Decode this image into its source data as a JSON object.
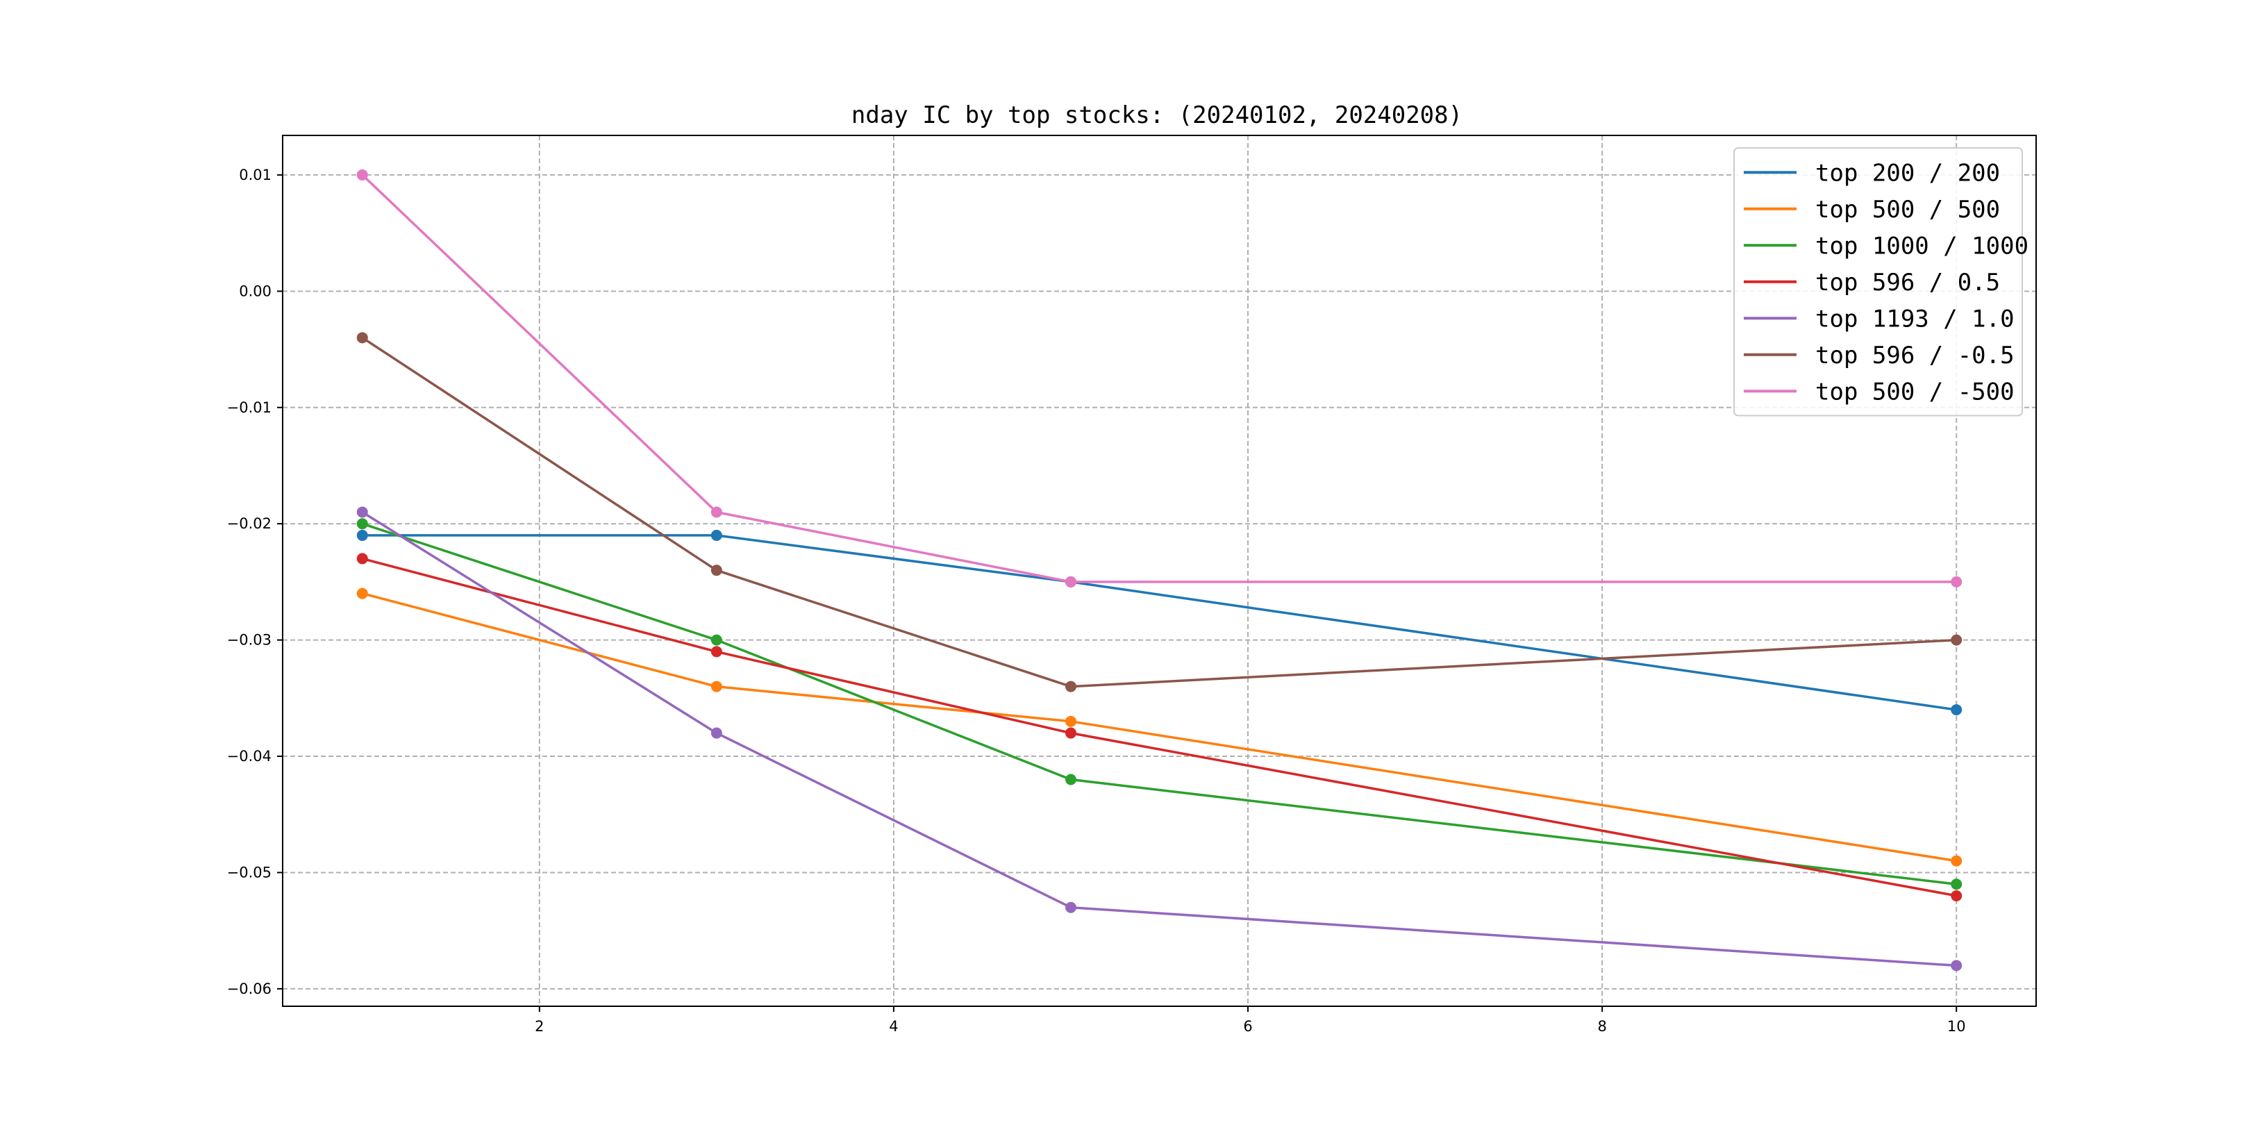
{
  "chart_data": {
    "type": "line",
    "title": "nday IC by top stocks: (20240102, 20240208)",
    "xlabel": "",
    "ylabel": "",
    "x": [
      1,
      3,
      5,
      10
    ],
    "xlim": [
      0.55,
      10.45
    ],
    "ylim": [
      -0.0615,
      0.0134
    ],
    "xticks": [
      2,
      4,
      6,
      8,
      10
    ],
    "xtick_labels": [
      "2",
      "4",
      "6",
      "8",
      "10"
    ],
    "yticks": [
      0.01,
      0.0,
      -0.01,
      -0.02,
      -0.03,
      -0.04,
      -0.05,
      -0.06
    ],
    "ytick_labels": [
      "0.01",
      "0.00",
      "−0.01",
      "−0.02",
      "−0.03",
      "−0.04",
      "−0.05",
      "−0.06"
    ],
    "grid": true,
    "legend_position": "top-right",
    "series": [
      {
        "name": "top 200 / 200",
        "color": "#1f77b4",
        "values": [
          -0.021,
          -0.021,
          -0.025,
          -0.036
        ]
      },
      {
        "name": "top 500 / 500",
        "color": "#ff7f0e",
        "values": [
          -0.026,
          -0.034,
          -0.037,
          -0.049
        ]
      },
      {
        "name": "top 1000 / 1000",
        "color": "#2ca02c",
        "values": [
          -0.02,
          -0.03,
          -0.042,
          -0.051
        ]
      },
      {
        "name": "top 596 / 0.5",
        "color": "#d62728",
        "values": [
          -0.023,
          -0.031,
          -0.038,
          -0.052
        ]
      },
      {
        "name": "top 1193 / 1.0",
        "color": "#9467bd",
        "values": [
          -0.019,
          -0.038,
          -0.053,
          -0.058
        ]
      },
      {
        "name": "top 596 / -0.5",
        "color": "#8c564b",
        "values": [
          -0.004,
          -0.024,
          -0.034,
          -0.03
        ]
      },
      {
        "name": "top 500 / -500",
        "color": "#e377c2",
        "values": [
          0.01,
          -0.019,
          -0.025,
          -0.025
        ]
      }
    ]
  }
}
